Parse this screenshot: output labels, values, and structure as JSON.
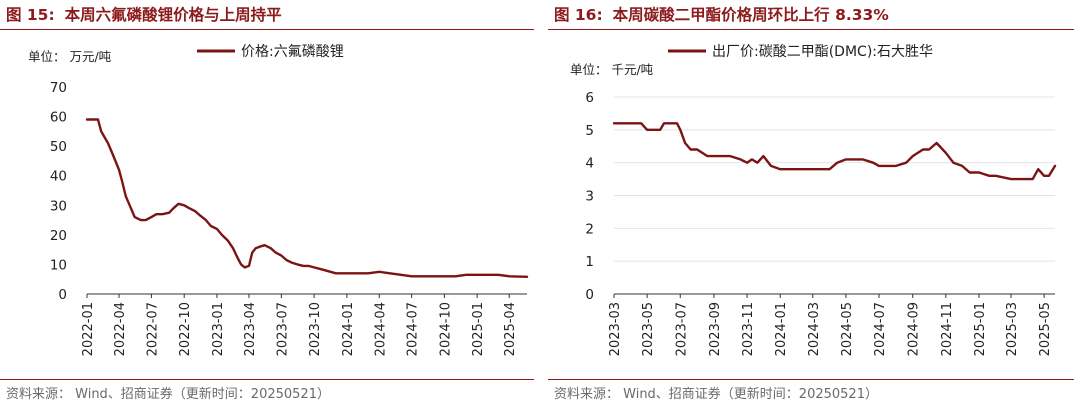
{
  "colors": {
    "accent": "#8c1c1c",
    "series": "#7b1414"
  },
  "chart_data": [
    {
      "type": "line",
      "figure_label": "图 15:",
      "title": "本周六氟磷酸锂价格与上周持平",
      "unit": "单位： 万元/吨",
      "legend": [
        "价格:六氟磷酸锂"
      ],
      "legend_position": "top-center",
      "grid": false,
      "ylim": [
        0,
        70
      ],
      "yticks": [
        "0",
        "10",
        "20",
        "30",
        "40",
        "50",
        "60",
        "70"
      ],
      "xlim": [
        "2022-01-01",
        "2025-05-21"
      ],
      "xticks": [
        "2022-01",
        "2022-04",
        "2022-07",
        "2022-10",
        "2023-01",
        "2023-04",
        "2023-07",
        "2023-10",
        "2024-01",
        "2024-04",
        "2024-07",
        "2024-10",
        "2025-01",
        "2025-04"
      ],
      "series": [
        {
          "name": "价格:六氟磷酸锂",
          "x": [
            "2022-01-01",
            "2022-02-01",
            "2022-02-10",
            "2022-03-01",
            "2022-03-15",
            "2022-04-01",
            "2022-04-10",
            "2022-04-20",
            "2022-05-01",
            "2022-05-15",
            "2022-06-01",
            "2022-06-15",
            "2022-07-01",
            "2022-07-15",
            "2022-08-01",
            "2022-08-20",
            "2022-09-01",
            "2022-09-15",
            "2022-10-01",
            "2022-10-15",
            "2022-11-01",
            "2022-11-15",
            "2022-12-01",
            "2022-12-15",
            "2023-01-01",
            "2023-01-15",
            "2023-02-01",
            "2023-02-15",
            "2023-03-01",
            "2023-03-10",
            "2023-03-20",
            "2023-04-01",
            "2023-04-10",
            "2023-04-20",
            "2023-05-01",
            "2023-05-15",
            "2023-06-01",
            "2023-06-15",
            "2023-07-01",
            "2023-07-15",
            "2023-08-01",
            "2023-08-15",
            "2023-09-01",
            "2023-09-15",
            "2023-10-01",
            "2023-11-01",
            "2023-12-01",
            "2024-01-01",
            "2024-02-01",
            "2024-03-01",
            "2024-04-01",
            "2024-05-01",
            "2024-06-01",
            "2024-07-01",
            "2024-08-01",
            "2024-09-01",
            "2024-10-01",
            "2024-11-01",
            "2024-12-01",
            "2025-01-01",
            "2025-02-01",
            "2025-03-01",
            "2025-04-01",
            "2025-05-21"
          ],
          "y": [
            59,
            59,
            55,
            51,
            47,
            42,
            38,
            33,
            30,
            26,
            25,
            25,
            26,
            27,
            27,
            27.5,
            29,
            30.5,
            30,
            29,
            28,
            26.5,
            25,
            23,
            22,
            20,
            18,
            15.5,
            12,
            10,
            9,
            9.5,
            14,
            15.5,
            16,
            16.5,
            15.5,
            14,
            13,
            11.5,
            10.5,
            10,
            9.5,
            9.5,
            9,
            8,
            7,
            7,
            7,
            7,
            7.5,
            7,
            6.5,
            6,
            6,
            6,
            6,
            6,
            6.5,
            6.5,
            6.5,
            6.5,
            6,
            5.8
          ]
        }
      ]
    },
    {
      "type": "line",
      "figure_label": "图 16:",
      "title": "本周碳酸二甲酯价格周环比上行 8.33%",
      "unit": "单位： 千元/吨",
      "legend": [
        "出厂价:碳酸二甲酯(DMC):石大胜华"
      ],
      "legend_position": "top-center",
      "grid": true,
      "ylim": [
        0,
        6
      ],
      "yticks": [
        "0",
        "1",
        "2",
        "3",
        "4",
        "5",
        "6"
      ],
      "xlim": [
        "2023-03-01",
        "2025-05-21"
      ],
      "xticks": [
        "2023-03",
        "2023-05",
        "2023-07",
        "2023-09",
        "2023-11",
        "2024-01",
        "2024-03",
        "2024-05",
        "2024-07",
        "2024-09",
        "2024-11",
        "2025-01",
        "2025-03",
        "2025-05"
      ],
      "series": [
        {
          "name": "出厂价:碳酸二甲酯(DMC):石大胜华",
          "x": [
            "2023-03-01",
            "2023-04-20",
            "2023-05-01",
            "2023-05-25",
            "2023-06-01",
            "2023-06-25",
            "2023-07-01",
            "2023-07-10",
            "2023-07-20",
            "2023-08-01",
            "2023-08-20",
            "2023-09-01",
            "2023-09-20",
            "2023-10-01",
            "2023-10-20",
            "2023-11-01",
            "2023-11-10",
            "2023-11-20",
            "2023-12-01",
            "2023-12-15",
            "2024-01-01",
            "2024-02-01",
            "2024-03-01",
            "2024-03-10",
            "2024-04-01",
            "2024-04-15",
            "2024-05-01",
            "2024-06-01",
            "2024-06-20",
            "2024-07-01",
            "2024-08-01",
            "2024-08-20",
            "2024-09-01",
            "2024-09-20",
            "2024-10-01",
            "2024-10-15",
            "2024-11-01",
            "2024-11-15",
            "2024-12-01",
            "2024-12-15",
            "2025-01-01",
            "2025-01-20",
            "2025-02-01",
            "2025-03-01",
            "2025-04-01",
            "2025-04-10",
            "2025-04-20",
            "2025-05-01",
            "2025-05-10",
            "2025-05-21"
          ],
          "y": [
            5.2,
            5.2,
            5.0,
            5.0,
            5.2,
            5.2,
            5.0,
            4.6,
            4.4,
            4.4,
            4.2,
            4.2,
            4.2,
            4.2,
            4.1,
            4.0,
            4.1,
            4.0,
            4.2,
            3.9,
            3.8,
            3.8,
            3.8,
            3.8,
            3.8,
            4.0,
            4.1,
            4.1,
            4.0,
            3.9,
            3.9,
            4.0,
            4.2,
            4.4,
            4.4,
            4.6,
            4.3,
            4.0,
            3.9,
            3.7,
            3.7,
            3.6,
            3.6,
            3.5,
            3.5,
            3.5,
            3.8,
            3.6,
            3.6,
            3.9
          ]
        }
      ]
    }
  ],
  "source": "资料来源： Wind、招商证券（更新时间：20250521）"
}
